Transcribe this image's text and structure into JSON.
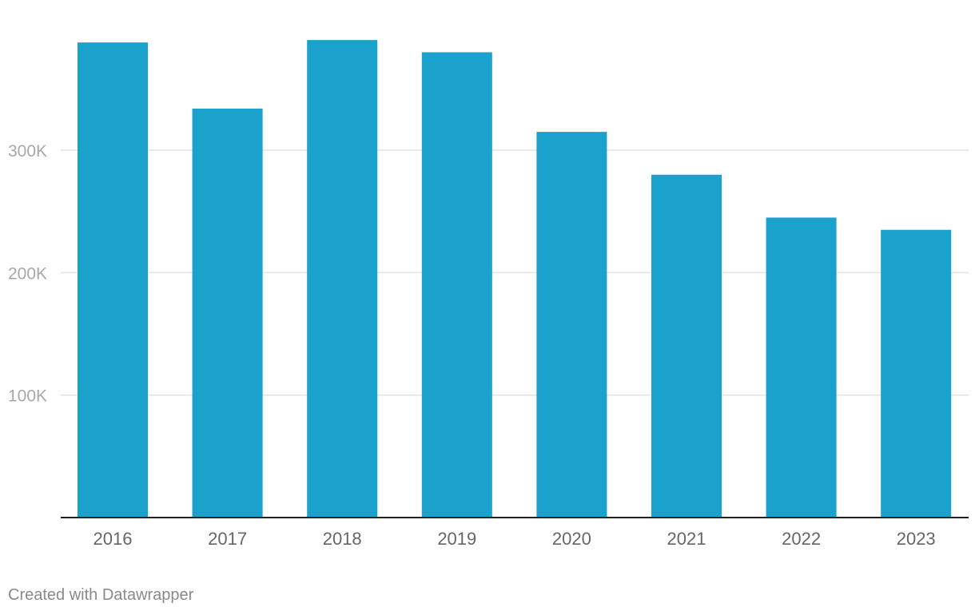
{
  "chart_data": {
    "type": "bar",
    "categories": [
      "2016",
      "2017",
      "2018",
      "2019",
      "2020",
      "2021",
      "2022",
      "2023"
    ],
    "values": [
      388000,
      334000,
      390000,
      380000,
      315000,
      280000,
      245000,
      235000
    ],
    "yticks": [
      {
        "value": 100000,
        "label": "100K"
      },
      {
        "value": 200000,
        "label": "200K"
      },
      {
        "value": 300000,
        "label": "300K"
      }
    ],
    "ylim": [
      0,
      400000
    ],
    "title": "",
    "xlabel": "",
    "ylabel": "",
    "grid": true,
    "colors": {
      "bar": "#1aa1cc",
      "grid": "#e3e3e3",
      "baseline": "#222222",
      "tick_label_y": "#a8a8a8",
      "tick_label_x": "#666666"
    }
  },
  "footer": {
    "credit": "Created with Datawrapper"
  }
}
